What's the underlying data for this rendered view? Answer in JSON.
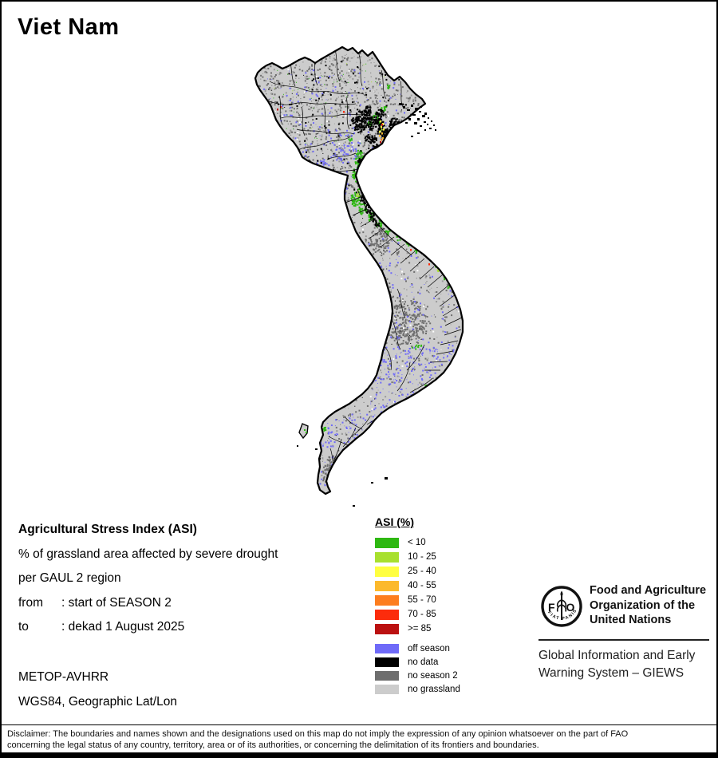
{
  "title": "Viet Nam",
  "info": {
    "heading": "Agricultural Stress Index (ASI)",
    "line1": "% of grassland area affected by severe drought",
    "line2": "per GAUL 2 region",
    "from_label": "from",
    "from_value": ": start of SEASON 2",
    "to_label": "to",
    "to_value": ": dekad 1 August 2025"
  },
  "source": {
    "sensor": "METOP-AVHRR",
    "projection": "WGS84, Geographic Lat/Lon"
  },
  "legend": {
    "title": "ASI (%)",
    "classes": [
      {
        "label": "< 10",
        "color": "#2eb812"
      },
      {
        "label": "10 - 25",
        "color": "#a8e02e"
      },
      {
        "label": "25 - 40",
        "color": "#ffff40"
      },
      {
        "label": "40 - 55",
        "color": "#fcb92c"
      },
      {
        "label": "55 - 70",
        "color": "#fd7d1e"
      },
      {
        "label": "70 - 85",
        "color": "#fc2c0c"
      },
      {
        "label": ">= 85",
        "color": "#bb1111"
      }
    ],
    "extra_classes": [
      {
        "label": "off season",
        "color": "#6f6af8"
      },
      {
        "label": "no data",
        "color": "#000000"
      },
      {
        "label": "no season 2",
        "color": "#6e6e6e"
      },
      {
        "label": "no grassland",
        "color": "#cccccc"
      }
    ]
  },
  "map": {
    "colors": {
      "land": "#cccccc",
      "boundary": "#000000",
      "speckle_dark": "#6e6e6e",
      "speckle_medium": "#999999",
      "white": "#ffffff",
      "off_season": "#6f6af8",
      "no_data": "#000000",
      "asi_lt10": "#2eb812",
      "asi_10_25": "#a8e02e",
      "asi_25_40": "#ffff40",
      "asi_40_55": "#fcb92c",
      "asi_55_70": "#fd7d1e",
      "asi_70_85": "#fc2c0c",
      "asi_ge85": "#bb1111"
    }
  },
  "footer": {
    "fao_logo_f": "F",
    "fao_logo_o": "O",
    "fao_motto": "FIAT PANIS",
    "fao_name_line1": "Food and Agriculture",
    "fao_name_line2": "Organization of the",
    "fao_name_line3": "United Nations",
    "giews_line1": "Global Information and Early",
    "giews_line2": "Warning System – GIEWS",
    "disclaimer_line1": "Disclaimer: The boundaries and names shown and the designations used on this map do not imply the expression of any opinion whatsoever on the part of FAO",
    "disclaimer_line2": "concerning the legal status of any country, territory, area or of its authorities, or concerning the delimitation of its frontiers and boundaries."
  }
}
